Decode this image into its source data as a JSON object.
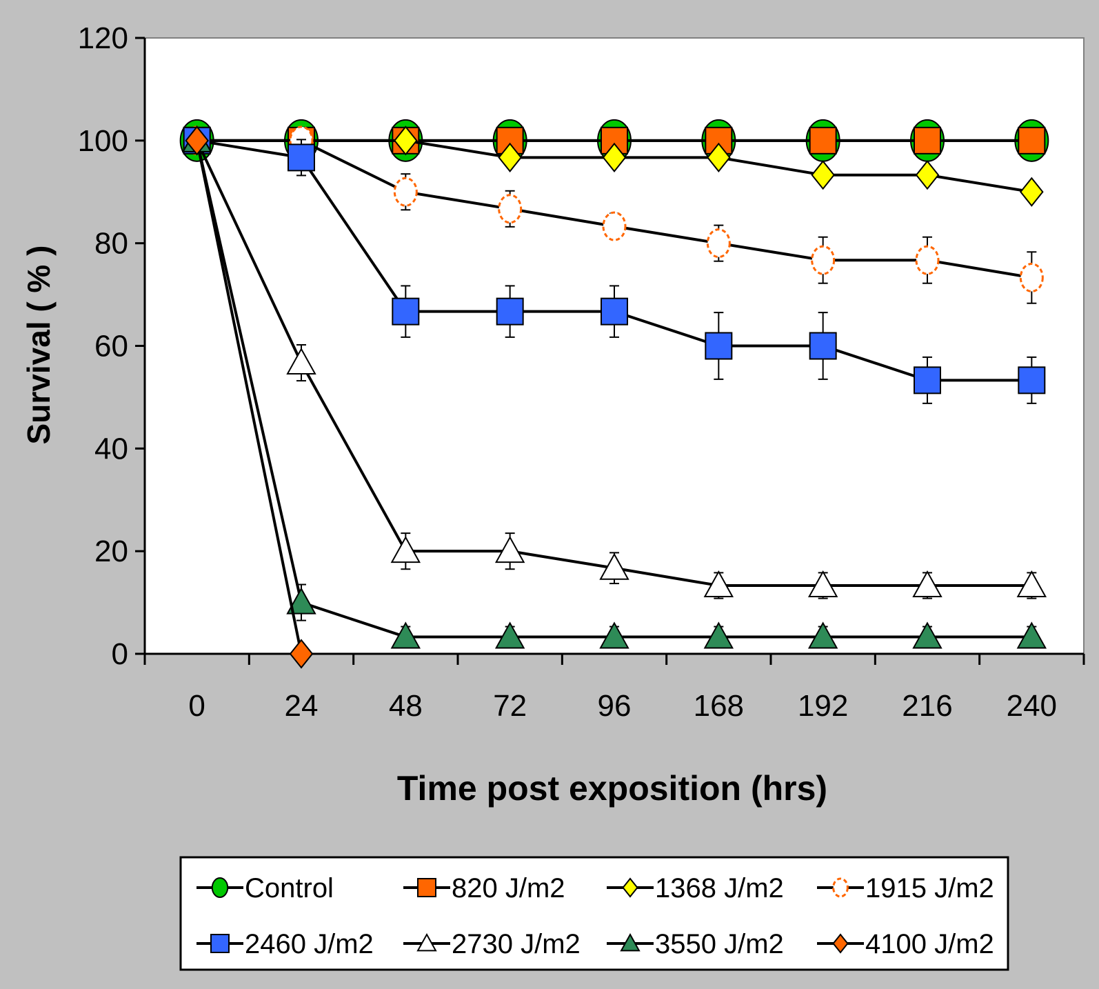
{
  "chart_data": {
    "type": "line",
    "title": "",
    "xlabel": "Time post exposition (hrs)",
    "ylabel": "Survival  ( % )",
    "ylim": [
      0,
      120
    ],
    "yticks": [
      0,
      20,
      40,
      60,
      80,
      100,
      120
    ],
    "categories": [
      "0",
      "24",
      "48",
      "72",
      "96",
      "168",
      "192",
      "216",
      "240"
    ],
    "grid": false,
    "legend_position": "bottom",
    "series": [
      {
        "name": "Control",
        "marker": "circle",
        "color": "#00c800",
        "marker_size": "large",
        "values": [
          100,
          100,
          100,
          100,
          100,
          100,
          100,
          100,
          100
        ],
        "error": null
      },
      {
        "name": "820 J/m2",
        "marker": "square",
        "color": "#ff6600",
        "values": [
          100,
          100,
          100,
          100,
          100,
          100,
          100,
          100,
          100
        ],
        "error": null
      },
      {
        "name": "1368 J/m2",
        "marker": "diamond",
        "color": "#ffff00",
        "values": [
          100,
          100,
          100,
          96.7,
          96.7,
          96.7,
          93.3,
          93.3,
          90
        ],
        "error": null
      },
      {
        "name": "1915 J/m2",
        "marker": "open-circle-dashed",
        "color": "#ff6600",
        "values": [
          100,
          100,
          90,
          86.7,
          83.3,
          80,
          76.7,
          76.7,
          73.3
        ],
        "error": [
          0,
          0,
          3.5,
          3.5,
          2.5,
          3.5,
          4.5,
          4.5,
          5
        ]
      },
      {
        "name": "2460 J/m2",
        "marker": "square",
        "color": "#3366ff",
        "values": [
          100,
          96.7,
          66.7,
          66.7,
          66.7,
          60,
          60,
          53.3,
          53.3
        ],
        "error": [
          0,
          3.5,
          5,
          5,
          5,
          6.5,
          6.5,
          4.5,
          4.5
        ]
      },
      {
        "name": "2730 J/m2",
        "marker": "open-triangle",
        "color": "#ffffff",
        "values": [
          100,
          56.7,
          20,
          20,
          16.7,
          13.3,
          13.3,
          13.3,
          13.3
        ],
        "error": [
          0,
          3.5,
          3.5,
          3.5,
          3,
          2.5,
          2.5,
          2.5,
          2.5
        ]
      },
      {
        "name": "3550 J/m2",
        "marker": "triangle",
        "color": "#2e8b57",
        "values": [
          100,
          10,
          3.3,
          3.3,
          3.3,
          3.3,
          3.3,
          3.3,
          3.3
        ],
        "error": [
          0,
          3.5,
          2,
          2,
          2,
          2,
          2,
          2,
          2
        ]
      },
      {
        "name": "4100 J/m2",
        "marker": "diamond",
        "color": "#ff6600",
        "values": [
          100,
          0,
          null,
          null,
          null,
          null,
          null,
          null,
          null
        ],
        "error": null
      }
    ]
  }
}
